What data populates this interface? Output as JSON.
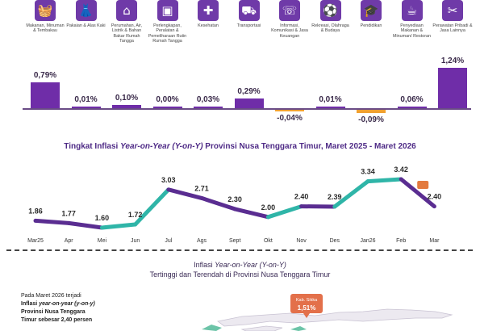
{
  "categories": [
    {
      "label": "Makanan, Minuman & Tembakau",
      "icon": "food-basket-icon",
      "glyph": "🧺",
      "value": 0.79,
      "value_label": "0,79%"
    },
    {
      "label": "Pakaian & Alas Kaki",
      "icon": "dress-icon",
      "glyph": "👗",
      "value": 0.01,
      "value_label": "0,01%"
    },
    {
      "label": "Perumahan, Air, Listrik & Bahan Bakar Rumah Tangga",
      "icon": "house-icon",
      "glyph": "⌂",
      "value": 0.1,
      "value_label": "0,10%"
    },
    {
      "label": "Perlengkapan, Peralatan & Pemeliharaan Rutin Rumah Tangga",
      "icon": "appliance-icon",
      "glyph": "▣",
      "value": 0.0,
      "value_label": "0,00%"
    },
    {
      "label": "Kesehatan",
      "icon": "medical-kit-icon",
      "glyph": "✚",
      "value": 0.03,
      "value_label": "0,03%"
    },
    {
      "label": "Transportasi",
      "icon": "vehicle-icon",
      "glyph": "⛟",
      "value": 0.29,
      "value_label": "0,29%"
    },
    {
      "label": "Informasi, Komunikasi & Jasa Keuangan",
      "icon": "smartphone-icon",
      "glyph": "☏",
      "value": -0.04,
      "value_label": "-0,04%"
    },
    {
      "label": "Rekreasi, Olahraga & Budaya",
      "icon": "sport-icon",
      "glyph": "⚽",
      "value": 0.01,
      "value_label": "0,01%"
    },
    {
      "label": "Pendidikan",
      "icon": "graduation-cap-icon",
      "glyph": "🎓",
      "value": -0.09,
      "value_label": "-0,09%"
    },
    {
      "label": "Penyediaan Makanan & Minuman/ Restoran",
      "icon": "restaurant-icon",
      "glyph": "☕",
      "value": 0.06,
      "value_label": "0,06%"
    },
    {
      "label": "Perawatan Pribadi & Jasa Lainnya",
      "icon": "personal-care-icon",
      "glyph": "✂",
      "value": 1.24,
      "value_label": "1,24%"
    }
  ],
  "colors": {
    "positive_bar": "#6f2da8",
    "negative_bar": "#f0a030",
    "line_up": "#2fb5a8",
    "line_down": "#5a2d91"
  },
  "chart_data": [
    {
      "type": "bar",
      "categories": [
        "Makanan, Minuman & Tembakau",
        "Pakaian & Alas Kaki",
        "Perumahan, Air, Listrik & Bahan Bakar Rumah Tangga",
        "Perlengkapan, Peralatan & Pemeliharaan Rutin Rumah Tangga",
        "Kesehatan",
        "Transportasi",
        "Informasi, Komunikasi & Jasa Keuangan",
        "Rekreasi, Olahraga & Budaya",
        "Pendidikan",
        "Penyediaan Makanan & Minuman/ Restoran",
        "Perawatan Pribadi & Jasa Lainnya"
      ],
      "values": [
        0.79,
        0.01,
        0.1,
        0.0,
        0.03,
        0.29,
        -0.04,
        0.01,
        -0.09,
        0.06,
        1.24
      ]
    },
    {
      "type": "line",
      "title_pre": "Tingkat Inflasi ",
      "title_em": "Year-on-Year (Y-on-Y)",
      "title_post": " Provinsi Nusa Tenggara Timur, Maret 2025 -  Maret 2026",
      "categories": [
        "Mar25",
        "Apr",
        "Mei",
        "Jun",
        "Jul",
        "Ags",
        "Sept",
        "Okt",
        "Nov",
        "Des",
        "Jan26",
        "Feb",
        "Mar"
      ],
      "values": [
        1.86,
        1.77,
        1.6,
        1.72,
        3.03,
        2.71,
        2.3,
        2.0,
        2.4,
        2.39,
        3.34,
        3.42,
        2.4
      ],
      "value_labels": [
        "1.86",
        "1.77",
        "1.60",
        "1.72",
        "3.03",
        "2.71",
        "2.30",
        "2.00",
        "2.40",
        "2.39",
        "3.34",
        "3.42",
        "2.40"
      ]
    }
  ],
  "map_section": {
    "title_pre": "Inflasi ",
    "title_em": "Year-on-Year (Y-on-Y)",
    "title_line2": "Tertinggi dan Terendah di Provinsi Nusa Tenggara Timur",
    "callout_name": "Kab. Sikka",
    "callout_value": "1,51%"
  },
  "note": {
    "line1": "Pada Maret 2026 terjadi",
    "line2_pre": "Inflasi ",
    "line2_em": "year-on-year (y-on-y)",
    "line3": "Provinsi Nusa Tenggara",
    "line4": "Timur sebesar 2,40 persen"
  }
}
